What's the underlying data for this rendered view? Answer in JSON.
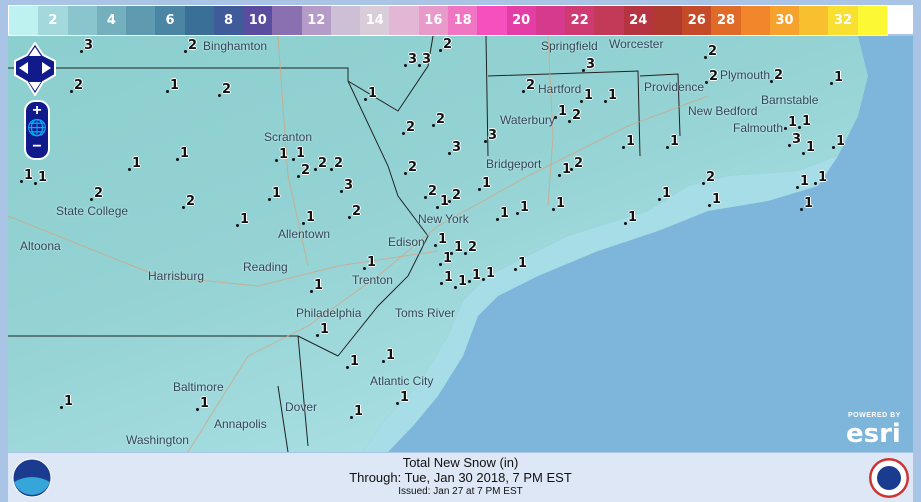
{
  "legend": {
    "ticks": [
      "",
      "2",
      "",
      "4",
      "",
      "6",
      "",
      "8",
      "10",
      "",
      "12",
      "",
      "14",
      "",
      "16",
      "18",
      "",
      "20",
      "",
      "22",
      "",
      "24",
      "",
      "26",
      "28",
      "",
      "30",
      "",
      "32",
      ""
    ],
    "colors": [
      "#bdf2f0",
      "#a3d8dc",
      "#8ac4cc",
      "#74afbd",
      "#5f9bb0",
      "#4a86a4",
      "#3a6f98",
      "#3f5b9a",
      "#5a4da0",
      "#8a70b0",
      "#b49bc8",
      "#cdbfd6",
      "#d9cdd9",
      "#e3b6d6",
      "#e89acb",
      "#f076c4",
      "#f550bd",
      "#e43da6",
      "#d63a8d",
      "#cf3a73",
      "#c23a58",
      "#b63342",
      "#b03a30",
      "#c44a28",
      "#e06a28",
      "#f2862a",
      "#f7a22c",
      "#f8c02e",
      "#f9df30",
      "#fcf833"
    ]
  },
  "map": {
    "cities": [
      "Binghamton",
      "Springfield",
      "Worcester",
      "Plymouth",
      "Hartford",
      "Providence",
      "Waterbury",
      "New Bedford",
      "Barnstable",
      "Falmouth",
      "Scranton",
      "Bridgeport",
      "State College",
      "Altoona",
      "New York",
      "Allentown",
      "Edison",
      "Reading",
      "Harrisburg",
      "Trenton",
      "Philadelphia",
      "Toms River",
      "Atlantic City",
      "Baltimore",
      "Annapolis",
      "Dover",
      "Washington"
    ],
    "snow_values": [
      "3",
      "2",
      "3",
      "2",
      "1",
      "2",
      "1",
      "2",
      "3",
      "3",
      "2",
      "2",
      "2",
      "1",
      "1",
      "1",
      "3",
      "2",
      "2",
      "3",
      "3",
      "2",
      "1",
      "2",
      "2",
      "1",
      "1",
      "1",
      "1",
      "1",
      "3",
      "2",
      "1",
      "2",
      "1",
      "1",
      "2",
      "2",
      "2",
      "2",
      "2",
      "1",
      "1",
      "1",
      "2",
      "2",
      "1",
      "1",
      "2",
      "1",
      "1",
      "1",
      "1",
      "1",
      "1",
      "1",
      "1",
      "1",
      "1",
      "1",
      "1",
      "1",
      "1",
      "1",
      "1",
      "2",
      "1",
      "1",
      "1",
      "1",
      "1",
      "1",
      "1",
      "1",
      "1",
      "1",
      "1",
      "1",
      "1",
      "1",
      "1"
    ],
    "attribution_powered": "POWERED BY",
    "attribution_logo": "esri"
  },
  "footer": {
    "title": "Total New Snow (in)",
    "through": "Through: Tue, Jan 30 2018,   7 PM EST",
    "issued": "Issued: Jan 27 at 7 PM EST"
  }
}
